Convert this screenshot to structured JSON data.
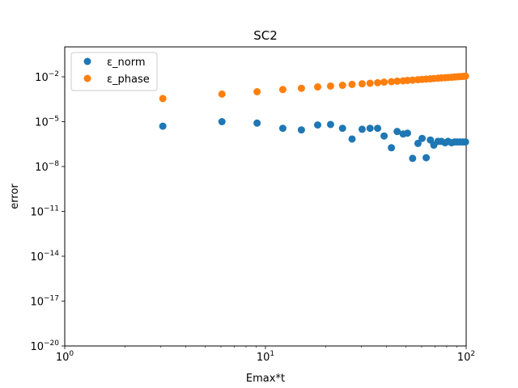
{
  "chart_data": {
    "type": "scatter",
    "title": "SC2",
    "xlabel": "Emax*t",
    "ylabel": "error",
    "xscale": "log",
    "yscale": "log",
    "xlim": [
      1,
      100
    ],
    "ylim": [
      1e-20,
      1
    ],
    "grid": false,
    "legend_position": "top-left",
    "x_ticks": [
      {
        "value": 1,
        "base": "10",
        "exp": "0"
      },
      {
        "value": 10,
        "base": "10",
        "exp": "1"
      },
      {
        "value": 100,
        "base": "10",
        "exp": "2"
      }
    ],
    "y_ticks": [
      {
        "value": 1e-20,
        "base": "10",
        "exp": "−20"
      },
      {
        "value": 1e-17,
        "base": "10",
        "exp": "−17"
      },
      {
        "value": 1e-14,
        "base": "10",
        "exp": "−14"
      },
      {
        "value": 1e-11,
        "base": "10",
        "exp": "−11"
      },
      {
        "value": 1e-08,
        "base": "10",
        "exp": "−8"
      },
      {
        "value": 1e-05,
        "base": "10",
        "exp": "−5"
      },
      {
        "value": 0.01,
        "base": "10",
        "exp": "−2"
      }
    ],
    "series": [
      {
        "name": "ε_norm",
        "color": "#1f77b4",
        "x": [
          3.08,
          6.07,
          9.08,
          12.2,
          15.1,
          18.2,
          21.1,
          24.2,
          27.0,
          30.3,
          33.2,
          36.2,
          39.0,
          42.4,
          45.3,
          48.5,
          51.0,
          54.1,
          57.5,
          60.3,
          63.2,
          66.3,
          69.0,
          72.3,
          75.2,
          78.5,
          81.2,
          84.5,
          87.5,
          90.2,
          93.1,
          96.3,
          99.2
        ],
        "y": [
          5e-06,
          1e-05,
          8e-06,
          3.6e-06,
          2.8e-06,
          6e-06,
          6.5e-06,
          3.6e-06,
          6.9e-07,
          3.1e-06,
          3.6e-06,
          3.6e-06,
          1.1e-06,
          1.8e-07,
          2.2e-06,
          1.5e-06,
          1.7e-06,
          3.5e-08,
          3.5e-07,
          7.6e-07,
          3.9e-08,
          5.9e-07,
          2.7e-07,
          4.8e-07,
          4.8e-07,
          3.9e-07,
          4.8e-07,
          3.9e-07,
          4.4e-07,
          4.4e-07,
          4.4e-07,
          4.4e-07,
          4.4e-07
        ]
      },
      {
        "name": "ε_phase",
        "color": "#ff7f0e",
        "x": [
          3.08,
          6.07,
          9.08,
          12.2,
          15.1,
          18.2,
          21.1,
          24.2,
          27.0,
          30.3,
          33.2,
          36.2,
          39.0,
          42.4,
          45.3,
          48.5,
          51.0,
          54.1,
          57.5,
          60.3,
          63.2,
          66.3,
          69.0,
          72.3,
          75.2,
          78.5,
          81.2,
          84.5,
          87.5,
          90.2,
          93.1,
          96.3,
          99.2
        ],
        "y": [
          0.00035,
          0.0007,
          0.001,
          0.0014,
          0.0017,
          0.0021,
          0.0024,
          0.0027,
          0.0031,
          0.0034,
          0.0037,
          0.004,
          0.0044,
          0.0047,
          0.0051,
          0.0054,
          0.0057,
          0.006,
          0.0064,
          0.0067,
          0.007,
          0.0073,
          0.0077,
          0.008,
          0.0084,
          0.0087,
          0.009,
          0.0093,
          0.0097,
          0.01,
          0.0103,
          0.0106,
          0.011
        ]
      }
    ]
  }
}
